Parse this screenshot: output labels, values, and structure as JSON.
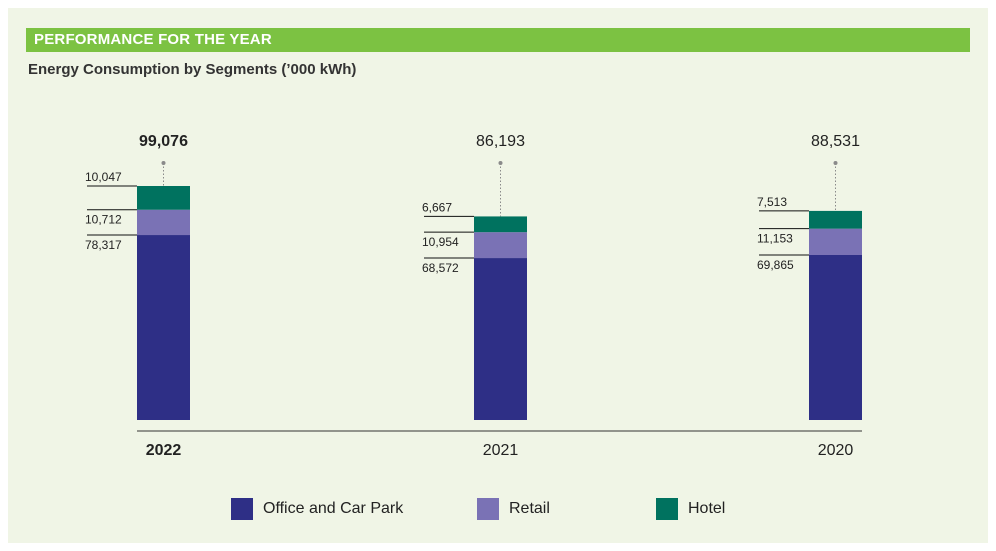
{
  "header": {
    "banner": "PERFORMANCE FOR THE YEAR",
    "subtitle": "Energy Consumption by Segments (’000 kWh)"
  },
  "colors": {
    "background": "#f0f5e6",
    "banner": "#7cc242",
    "office": "#2e2f86",
    "retail": "#7a72b5",
    "hotel": "#00725f"
  },
  "chart_data": {
    "type": "bar",
    "stacked": true,
    "categories": [
      "2022",
      "2021",
      "2020"
    ],
    "category_bold": [
      true,
      false,
      false
    ],
    "totals": [
      "99,076",
      "86,193",
      "88,531"
    ],
    "series": [
      {
        "name": "Office and Car Park",
        "values": [
          78317,
          68572,
          69865
        ],
        "labels": [
          "78,317",
          "68,572",
          "69,865"
        ],
        "color": "#2e2f86"
      },
      {
        "name": "Retail",
        "values": [
          10712,
          10954,
          11153
        ],
        "labels": [
          "10,712",
          "10,954",
          "11,153"
        ],
        "color": "#7a72b5"
      },
      {
        "name": "Hotel",
        "values": [
          10047,
          6667,
          7513
        ],
        "labels": [
          "10,047",
          "6,667",
          "7,513"
        ],
        "color": "#00725f"
      }
    ],
    "legend_position": "bottom",
    "grid": false
  }
}
